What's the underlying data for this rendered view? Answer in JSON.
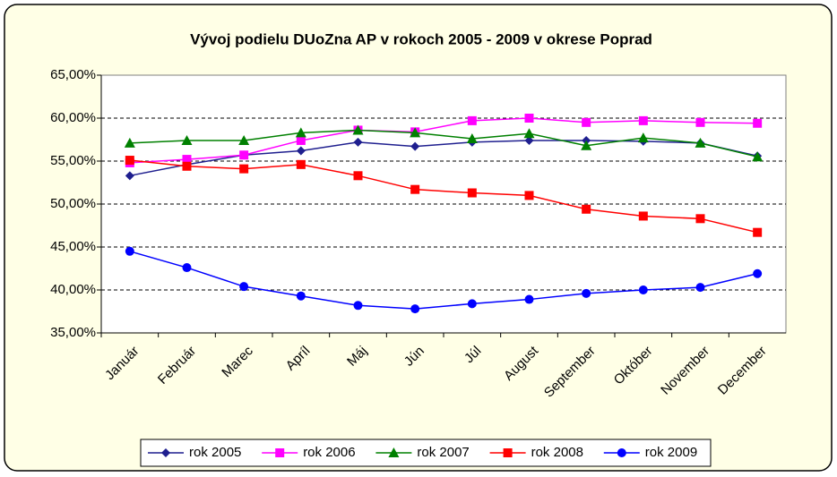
{
  "chart_data": {
    "type": "line",
    "title": "Vývoj podielu DUoZna AP  v rokoch 2005 - 2009 v okrese Poprad",
    "categories": [
      "Január",
      "Február",
      "Marec",
      "Apríl",
      "Máj",
      "Jún",
      "Júl",
      "August",
      "September",
      "Október",
      "November",
      "December"
    ],
    "series": [
      {
        "name": "rok 2005",
        "color": "#1f1f8f",
        "marker": "diamond",
        "values": [
          53.3,
          54.6,
          55.7,
          56.2,
          57.2,
          56.7,
          57.2,
          57.4,
          57.4,
          57.3,
          57.1,
          55.6
        ]
      },
      {
        "name": "rok 2006",
        "color": "#ff00ff",
        "marker": "square",
        "values": [
          54.8,
          55.2,
          55.7,
          57.4,
          58.6,
          58.4,
          59.7,
          60.0,
          59.5,
          59.7,
          59.5,
          59.4
        ]
      },
      {
        "name": "rok 2007",
        "color": "#008000",
        "marker": "triangle",
        "values": [
          57.1,
          57.4,
          57.4,
          58.3,
          58.6,
          58.3,
          57.6,
          58.2,
          56.8,
          57.7,
          57.1,
          55.5
        ]
      },
      {
        "name": "rok 2008",
        "color": "#ff0000",
        "marker": "square",
        "values": [
          55.1,
          54.4,
          54.1,
          54.6,
          53.3,
          51.7,
          51.3,
          51.0,
          49.4,
          48.6,
          48.3,
          46.7
        ]
      },
      {
        "name": "rok 2009",
        "color": "#0000ff",
        "marker": "circle",
        "values": [
          44.5,
          42.6,
          40.4,
          39.3,
          38.2,
          37.8,
          38.4,
          38.9,
          39.6,
          40.0,
          40.3,
          41.9
        ]
      }
    ],
    "ylim": [
      35,
      65
    ],
    "yticks": [
      {
        "value": 35,
        "label": "35,00%"
      },
      {
        "value": 40,
        "label": "40,00%"
      },
      {
        "value": 45,
        "label": "45,00%"
      },
      {
        "value": 50,
        "label": "50,00%"
      },
      {
        "value": 55,
        "label": "55,00%"
      },
      {
        "value": 60,
        "label": "60,00%"
      },
      {
        "value": 65,
        "label": "65,00%"
      }
    ],
    "grid": true,
    "legend": "bottom"
  }
}
